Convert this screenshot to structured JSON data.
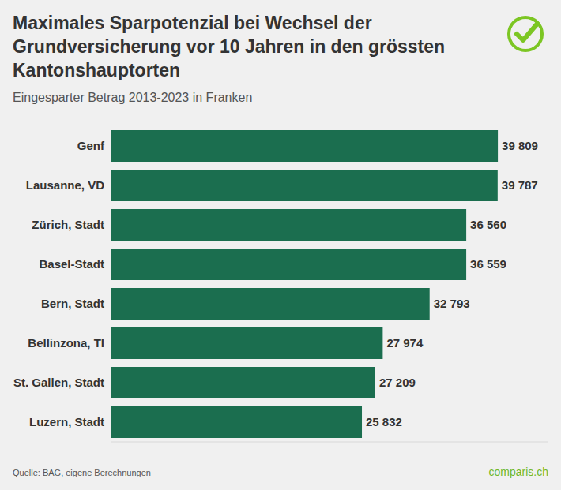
{
  "chart_data": {
    "type": "bar",
    "title": "Maximales Sparpotenzial bei Wechsel der Grundversicherung vor 10 Jahren in den grössten Kantonshauptorten",
    "subtitle": "Eingesparter Betrag 2013-2023 in Franken",
    "source": "Quelle: BAG, eigene Berechnungen",
    "brand": "comparis.ch",
    "orientation": "horizontal",
    "categories": [
      "Genf",
      "Lausanne, VD",
      "Zürich, Stadt",
      "Basel-Stadt",
      "Bern, Stadt",
      "Bellinzona, TI",
      "St. Gallen, Stadt",
      "Luzern, Stadt"
    ],
    "values": [
      39809,
      39787,
      36560,
      36559,
      32793,
      27974,
      27209,
      25832
    ],
    "value_labels": [
      "39 809",
      "39 787",
      "36 560",
      "36 559",
      "32 793",
      "27 974",
      "27 209",
      "25 832"
    ],
    "color": "#1b6e4f",
    "xlim": [
      0,
      45000
    ],
    "grid": false,
    "data_labels": true,
    "tick_labels": "y"
  }
}
